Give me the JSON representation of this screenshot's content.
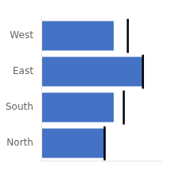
{
  "chart_data": {
    "type": "bar",
    "orientation": "horizontal",
    "categories": [
      "North",
      "South",
      "East",
      "West"
    ],
    "series": [
      {
        "type": "bar",
        "color": "#4472C4",
        "values": [
          63,
          71,
          100,
          71
        ]
      },
      {
        "type": "scatter",
        "marker": "vline",
        "color": "#000000",
        "values": [
          62,
          81,
          100,
          85
        ]
      }
    ],
    "xlim": [
      0,
      118
    ],
    "grid": false,
    "tick_labels": "y"
  }
}
